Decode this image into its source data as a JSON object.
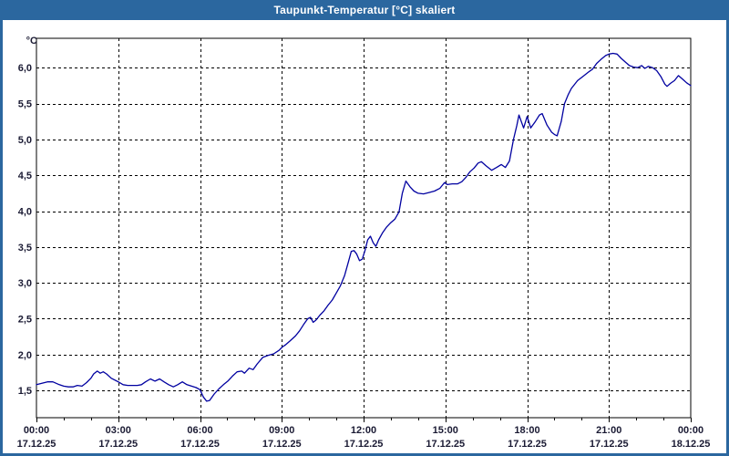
{
  "window": {
    "title": "Taupunkt-Temperatur [°C] skaliert"
  },
  "colors": {
    "titlebar_bg": "#2b679f",
    "panel_border": "#2b679f",
    "title_text": "#ffffff",
    "plot_bg": "#ffffff",
    "frame": "#000000",
    "grid": "#000000",
    "tick_text": "#1a1a33",
    "line": "#0000a0"
  },
  "chart_data": {
    "type": "line",
    "title": "Taupunkt-Temperatur [°C] skaliert",
    "ylabel": "°C",
    "xlabel": "",
    "ylim": [
      1.12,
      6.41
    ],
    "xlim": [
      0,
      24
    ],
    "grid": "dashed",
    "legend_position": "none",
    "minor_tick_every_hours": 1,
    "y_ticks": [
      {
        "value": 6.0,
        "label": "6,0"
      },
      {
        "value": 5.5,
        "label": "5,5"
      },
      {
        "value": 5.0,
        "label": "5,0"
      },
      {
        "value": 4.5,
        "label": "4,5"
      },
      {
        "value": 4.0,
        "label": "4,0"
      },
      {
        "value": 3.5,
        "label": "3,5"
      },
      {
        "value": 3.0,
        "label": "3,0"
      },
      {
        "value": 2.5,
        "label": "2,5"
      },
      {
        "value": 2.0,
        "label": "2,0"
      },
      {
        "value": 1.5,
        "label": "1,5"
      }
    ],
    "x_ticks": [
      {
        "hour": 0,
        "time": "00:00",
        "date": "17.12.25"
      },
      {
        "hour": 3,
        "time": "03:00",
        "date": "17.12.25"
      },
      {
        "hour": 6,
        "time": "06:00",
        "date": "17.12.25"
      },
      {
        "hour": 9,
        "time": "09:00",
        "date": "17.12.25"
      },
      {
        "hour": 12,
        "time": "12:00",
        "date": "17.12.25"
      },
      {
        "hour": 15,
        "time": "15:00",
        "date": "17.12.25"
      },
      {
        "hour": 18,
        "time": "18:00",
        "date": "17.12.25"
      },
      {
        "hour": 21,
        "time": "21:00",
        "date": "17.12.25"
      },
      {
        "hour": 24,
        "time": "00:00",
        "date": "18.12.25"
      }
    ],
    "series": [
      {
        "name": "Taupunkt-Temperatur",
        "color": "#0000a0",
        "points": [
          [
            0.0,
            1.58
          ],
          [
            0.2,
            1.6
          ],
          [
            0.4,
            1.62
          ],
          [
            0.6,
            1.62
          ],
          [
            0.84,
            1.58
          ],
          [
            1.0,
            1.56
          ],
          [
            1.17,
            1.55
          ],
          [
            1.34,
            1.55
          ],
          [
            1.5,
            1.57
          ],
          [
            1.67,
            1.56
          ],
          [
            1.84,
            1.61
          ],
          [
            2.0,
            1.67
          ],
          [
            2.1,
            1.73
          ],
          [
            2.23,
            1.77
          ],
          [
            2.34,
            1.74
          ],
          [
            2.45,
            1.76
          ],
          [
            2.57,
            1.73
          ],
          [
            2.74,
            1.67
          ],
          [
            3.0,
            1.62
          ],
          [
            3.18,
            1.58
          ],
          [
            3.35,
            1.57
          ],
          [
            3.51,
            1.57
          ],
          [
            3.7,
            1.57
          ],
          [
            3.85,
            1.58
          ],
          [
            4.0,
            1.62
          ],
          [
            4.18,
            1.66
          ],
          [
            4.35,
            1.63
          ],
          [
            4.52,
            1.66
          ],
          [
            4.68,
            1.62
          ],
          [
            4.85,
            1.58
          ],
          [
            5.02,
            1.55
          ],
          [
            5.18,
            1.58
          ],
          [
            5.35,
            1.62
          ],
          [
            5.52,
            1.58
          ],
          [
            5.69,
            1.56
          ],
          [
            5.86,
            1.54
          ],
          [
            6.0,
            1.51
          ],
          [
            6.12,
            1.41
          ],
          [
            6.24,
            1.35
          ],
          [
            6.35,
            1.36
          ],
          [
            6.52,
            1.45
          ],
          [
            6.69,
            1.52
          ],
          [
            6.86,
            1.58
          ],
          [
            7.02,
            1.63
          ],
          [
            7.19,
            1.7
          ],
          [
            7.36,
            1.76
          ],
          [
            7.53,
            1.77
          ],
          [
            7.63,
            1.74
          ],
          [
            7.8,
            1.81
          ],
          [
            7.95,
            1.79
          ],
          [
            8.1,
            1.87
          ],
          [
            8.3,
            1.96
          ],
          [
            8.5,
            1.99
          ],
          [
            8.7,
            2.01
          ],
          [
            8.9,
            2.06
          ],
          [
            9.0,
            2.1
          ],
          [
            9.15,
            2.14
          ],
          [
            9.3,
            2.19
          ],
          [
            9.5,
            2.26
          ],
          [
            9.65,
            2.33
          ],
          [
            9.8,
            2.42
          ],
          [
            9.95,
            2.5
          ],
          [
            10.05,
            2.52
          ],
          [
            10.15,
            2.45
          ],
          [
            10.25,
            2.48
          ],
          [
            10.4,
            2.55
          ],
          [
            10.55,
            2.61
          ],
          [
            10.7,
            2.69
          ],
          [
            10.85,
            2.76
          ],
          [
            11.0,
            2.86
          ],
          [
            11.15,
            2.96
          ],
          [
            11.3,
            3.1
          ],
          [
            11.45,
            3.3
          ],
          [
            11.55,
            3.44
          ],
          [
            11.65,
            3.45
          ],
          [
            11.75,
            3.4
          ],
          [
            11.85,
            3.31
          ],
          [
            11.95,
            3.33
          ],
          [
            12.05,
            3.45
          ],
          [
            12.15,
            3.6
          ],
          [
            12.25,
            3.65
          ],
          [
            12.35,
            3.56
          ],
          [
            12.45,
            3.51
          ],
          [
            12.55,
            3.6
          ],
          [
            12.7,
            3.7
          ],
          [
            12.85,
            3.78
          ],
          [
            13.0,
            3.84
          ],
          [
            13.15,
            3.89
          ],
          [
            13.3,
            3.99
          ],
          [
            13.42,
            4.25
          ],
          [
            13.55,
            4.42
          ],
          [
            13.7,
            4.34
          ],
          [
            13.85,
            4.28
          ],
          [
            14.0,
            4.25
          ],
          [
            14.2,
            4.24
          ],
          [
            14.4,
            4.26
          ],
          [
            14.6,
            4.28
          ],
          [
            14.8,
            4.32
          ],
          [
            14.97,
            4.4
          ],
          [
            15.07,
            4.37
          ],
          [
            15.25,
            4.38
          ],
          [
            15.45,
            4.38
          ],
          [
            15.6,
            4.41
          ],
          [
            15.75,
            4.47
          ],
          [
            15.9,
            4.55
          ],
          [
            16.05,
            4.6
          ],
          [
            16.2,
            4.67
          ],
          [
            16.32,
            4.69
          ],
          [
            16.5,
            4.63
          ],
          [
            16.7,
            4.57
          ],
          [
            16.88,
            4.61
          ],
          [
            17.05,
            4.65
          ],
          [
            17.2,
            4.61
          ],
          [
            17.35,
            4.7
          ],
          [
            17.5,
            5.0
          ],
          [
            17.62,
            5.19
          ],
          [
            17.7,
            5.34
          ],
          [
            17.87,
            5.16
          ],
          [
            18.0,
            5.32
          ],
          [
            18.13,
            5.16
          ],
          [
            18.3,
            5.25
          ],
          [
            18.45,
            5.34
          ],
          [
            18.55,
            5.36
          ],
          [
            18.73,
            5.2
          ],
          [
            18.9,
            5.1
          ],
          [
            19.0,
            5.07
          ],
          [
            19.1,
            5.05
          ],
          [
            19.25,
            5.25
          ],
          [
            19.37,
            5.5
          ],
          [
            19.5,
            5.62
          ],
          [
            19.62,
            5.71
          ],
          [
            19.85,
            5.82
          ],
          [
            20.05,
            5.88
          ],
          [
            20.25,
            5.94
          ],
          [
            20.4,
            5.98
          ],
          [
            20.55,
            6.06
          ],
          [
            20.72,
            6.12
          ],
          [
            20.88,
            6.17
          ],
          [
            21.0,
            6.19
          ],
          [
            21.15,
            6.2
          ],
          [
            21.3,
            6.19
          ],
          [
            21.45,
            6.13
          ],
          [
            21.6,
            6.08
          ],
          [
            21.75,
            6.03
          ],
          [
            21.9,
            6.01
          ],
          [
            22.05,
            6.0
          ],
          [
            22.2,
            6.03
          ],
          [
            22.32,
            5.99
          ],
          [
            22.45,
            6.02
          ],
          [
            22.6,
            6.0
          ],
          [
            22.75,
            5.96
          ],
          [
            22.9,
            5.88
          ],
          [
            23.05,
            5.77
          ],
          [
            23.13,
            5.74
          ],
          [
            23.25,
            5.78
          ],
          [
            23.4,
            5.82
          ],
          [
            23.55,
            5.89
          ],
          [
            23.7,
            5.84
          ],
          [
            23.85,
            5.79
          ],
          [
            24.0,
            5.75
          ]
        ]
      }
    ]
  }
}
